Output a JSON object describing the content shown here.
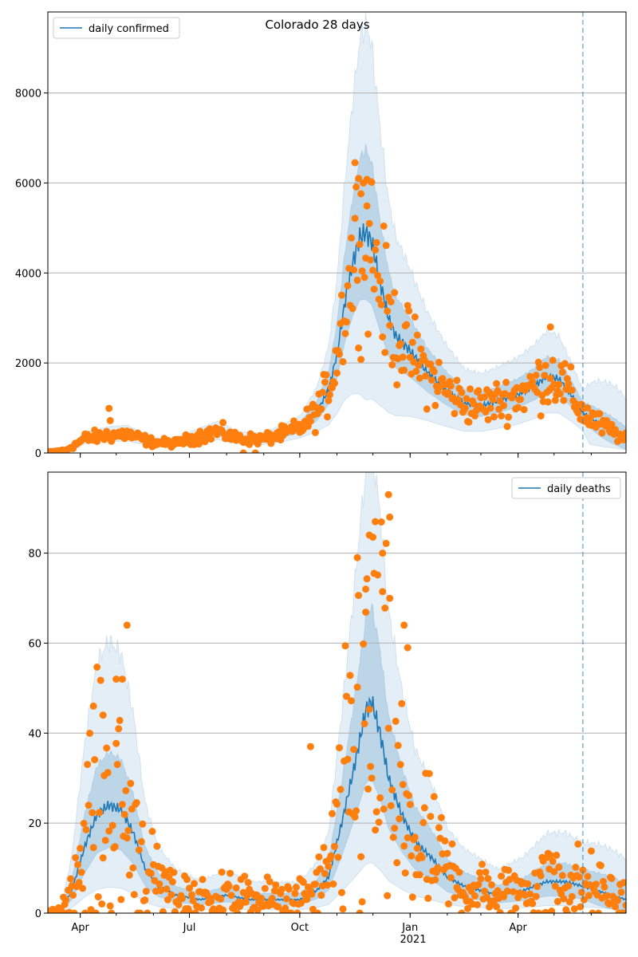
{
  "figure": {
    "title": "Colorado 28 days"
  },
  "colors": {
    "line": "#1f77b4",
    "points": "#ff7f0e",
    "band": "#1f77b4",
    "grid": "#b0b0b0",
    "forecast_line": "#1f77b4"
  },
  "x_axis": {
    "ticks": [
      {
        "date": "2020-04-01",
        "label": "Apr"
      },
      {
        "date": "2020-07-01",
        "label": "Jul"
      },
      {
        "date": "2020-10-01",
        "label": "Oct"
      },
      {
        "date": "2021-01-01",
        "label": "Jan"
      },
      {
        "date": "2021-04-01",
        "label": "Apr"
      }
    ],
    "year_label": "2021",
    "xlim": [
      "2020-03-05",
      "2021-06-30"
    ],
    "forecast_start": "2021-05-25"
  },
  "chart_data": [
    {
      "type": "line",
      "legend": "daily confirmed",
      "legend_position": "top-left",
      "ylim": [
        0,
        9800
      ],
      "yticks": [
        0,
        2000,
        4000,
        6000,
        8000
      ],
      "grid": "y",
      "line_anchors": [
        [
          "2020-03-05",
          20
        ],
        [
          "2020-03-20",
          60
        ],
        [
          "2020-04-05",
          320
        ],
        [
          "2020-04-25",
          400
        ],
        [
          "2020-05-10",
          420
        ],
        [
          "2020-06-01",
          230
        ],
        [
          "2020-06-20",
          220
        ],
        [
          "2020-07-10",
          380
        ],
        [
          "2020-07-25",
          480
        ],
        [
          "2020-08-10",
          320
        ],
        [
          "2020-08-30",
          300
        ],
        [
          "2020-09-15",
          400
        ],
        [
          "2020-10-01",
          550
        ],
        [
          "2020-10-15",
          900
        ],
        [
          "2020-10-25",
          1400
        ],
        [
          "2020-11-01",
          2200
        ],
        [
          "2020-11-08",
          3400
        ],
        [
          "2020-11-14",
          4200
        ],
        [
          "2020-11-20",
          4800
        ],
        [
          "2020-11-25",
          4900
        ],
        [
          "2020-11-30",
          4700
        ],
        [
          "2020-12-07",
          3800
        ],
        [
          "2020-12-14",
          3000
        ],
        [
          "2020-12-20",
          2600
        ],
        [
          "2020-12-31",
          2300
        ],
        [
          "2021-01-15",
          1800
        ],
        [
          "2021-01-31",
          1400
        ],
        [
          "2021-02-15",
          1100
        ],
        [
          "2021-03-01",
          1050
        ],
        [
          "2021-03-15",
          1150
        ],
        [
          "2021-04-01",
          1300
        ],
        [
          "2021-04-15",
          1500
        ],
        [
          "2021-04-25",
          1700
        ],
        [
          "2021-05-05",
          1650
        ],
        [
          "2021-05-15",
          1300
        ],
        [
          "2021-05-25",
          900
        ],
        [
          "2021-06-10",
          600
        ],
        [
          "2021-06-30",
          300
        ]
      ],
      "band50_anchors": [
        [
          "2020-03-05",
          0.2
        ],
        [
          "2020-10-01",
          0.22
        ],
        [
          "2020-11-25",
          0.38
        ],
        [
          "2021-01-15",
          0.3
        ],
        [
          "2021-05-25",
          0.25
        ],
        [
          "2021-06-30",
          0.9
        ]
      ],
      "band90_anchors": [
        [
          "2020-03-05",
          0.45
        ],
        [
          "2020-10-01",
          0.5
        ],
        [
          "2020-11-25",
          0.95
        ],
        [
          "2021-01-15",
          0.75
        ],
        [
          "2021-05-25",
          0.55
        ],
        [
          "2021-06-30",
          3.0
        ]
      ],
      "point_noise": 0.2,
      "point_extra": [
        [
          "2020-04-25",
          990
        ],
        [
          "2020-04-26",
          720
        ],
        [
          "2020-11-16",
          6450
        ],
        [
          "2020-11-19",
          6100
        ],
        [
          "2020-11-21",
          5760
        ],
        [
          "2020-11-26",
          6080
        ],
        [
          "2020-11-29",
          6030
        ],
        [
          "2021-04-28",
          2800
        ],
        [
          "2020-08-15",
          0
        ],
        [
          "2020-08-25",
          0
        ]
      ]
    },
    {
      "type": "line",
      "legend": "daily deaths",
      "legend_position": "top-right",
      "ylim": [
        0,
        98
      ],
      "yticks": [
        0,
        20,
        40,
        60,
        80
      ],
      "grid": "y",
      "line_anchors": [
        [
          "2020-03-05",
          0
        ],
        [
          "2020-03-15",
          0
        ],
        [
          "2020-03-25",
          5
        ],
        [
          "2020-04-05",
          15
        ],
        [
          "2020-04-15",
          22
        ],
        [
          "2020-04-25",
          24
        ],
        [
          "2020-05-05",
          23
        ],
        [
          "2020-05-15",
          18
        ],
        [
          "2020-05-25",
          10
        ],
        [
          "2020-06-05",
          6
        ],
        [
          "2020-06-20",
          4
        ],
        [
          "2020-07-10",
          3
        ],
        [
          "2020-08-01",
          4
        ],
        [
          "2020-08-20",
          3
        ],
        [
          "2020-09-15",
          3
        ],
        [
          "2020-10-01",
          3
        ],
        [
          "2020-10-15",
          5
        ],
        [
          "2020-10-25",
          8
        ],
        [
          "2020-11-05",
          20
        ],
        [
          "2020-11-15",
          32
        ],
        [
          "2020-11-25",
          45
        ],
        [
          "2020-11-30",
          47
        ],
        [
          "2020-12-07",
          40
        ],
        [
          "2020-12-14",
          30
        ],
        [
          "2020-12-25",
          22
        ],
        [
          "2021-01-05",
          16
        ],
        [
          "2021-01-20",
          12
        ],
        [
          "2021-02-01",
          8
        ],
        [
          "2021-02-15",
          6
        ],
        [
          "2021-03-01",
          5
        ],
        [
          "2021-03-15",
          4
        ],
        [
          "2021-04-05",
          5
        ],
        [
          "2021-04-25",
          7
        ],
        [
          "2021-05-10",
          7
        ],
        [
          "2021-05-25",
          6
        ],
        [
          "2021-06-30",
          3
        ]
      ],
      "band50_anchors": [
        [
          "2020-03-05",
          0.5
        ],
        [
          "2020-11-25",
          0.45
        ],
        [
          "2021-05-25",
          0.6
        ],
        [
          "2021-06-30",
          1.2
        ]
      ],
      "band90_anchors": [
        [
          "2020-03-05",
          1.6
        ],
        [
          "2020-11-25",
          1.2
        ],
        [
          "2021-05-25",
          1.6
        ],
        [
          "2021-06-30",
          3.0
        ]
      ],
      "point_noise": 0.65,
      "point_extra": [
        [
          "2020-05-10",
          64
        ],
        [
          "2020-05-01",
          52
        ],
        [
          "2020-05-06",
          52
        ],
        [
          "2020-04-20",
          44
        ],
        [
          "2020-04-12",
          46
        ],
        [
          "2020-10-10",
          37
        ],
        [
          "2020-11-18",
          79
        ],
        [
          "2020-11-25",
          72
        ],
        [
          "2020-11-28",
          84
        ],
        [
          "2020-12-03",
          87
        ],
        [
          "2020-12-09",
          80
        ],
        [
          "2020-12-14",
          93
        ],
        [
          "2020-12-15",
          88
        ],
        [
          "2020-12-27",
          64
        ],
        [
          "2020-12-30",
          59
        ]
      ]
    }
  ]
}
